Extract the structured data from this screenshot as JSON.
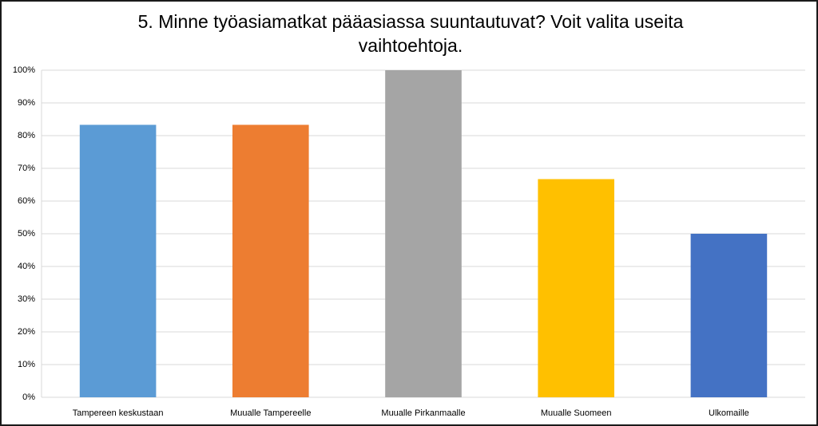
{
  "chart_data": {
    "type": "bar",
    "title": "5. Minne työasiamatkat pääasiassa suuntautuvat? Voit valita useita vaihtoehtoja.",
    "categories": [
      "Tampereen keskustaan",
      "Muualle Tampereelle",
      "Muualle Pirkanmaalle",
      "Muualle Suomeen",
      "Ulkomaille"
    ],
    "values": [
      83.3,
      83.3,
      100,
      66.7,
      50
    ],
    "colors": [
      "#5b9bd5",
      "#ed7d31",
      "#a5a5a5",
      "#ffc000",
      "#4472c4"
    ],
    "ylim": [
      0,
      100
    ],
    "yticks": [
      {
        "value": 0,
        "label": "0%"
      },
      {
        "value": 10,
        "label": "10%"
      },
      {
        "value": 20,
        "label": "20%"
      },
      {
        "value": 30,
        "label": "30%"
      },
      {
        "value": 40,
        "label": "40%"
      },
      {
        "value": 50,
        "label": "50%"
      },
      {
        "value": 60,
        "label": "60%"
      },
      {
        "value": 70,
        "label": "70%"
      },
      {
        "value": 80,
        "label": "80%"
      },
      {
        "value": 90,
        "label": "90%"
      },
      {
        "value": 100,
        "label": "100%"
      }
    ],
    "grid": true
  }
}
